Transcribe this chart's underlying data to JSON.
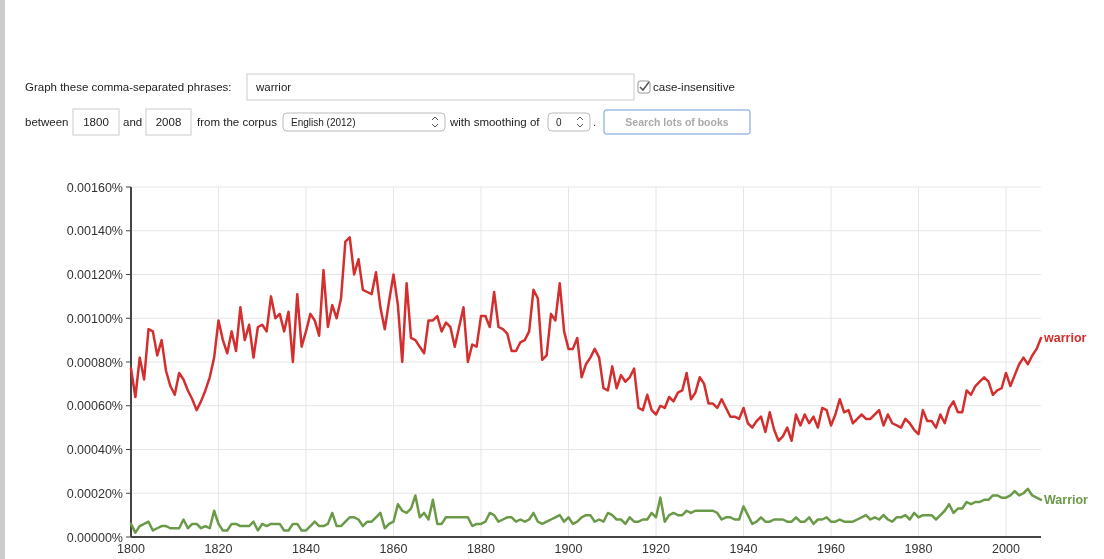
{
  "chart_data": {
    "type": "line",
    "annotations": [
      "Graph these comma-separated phrases:",
      "warrior",
      "case-insensitive",
      "between",
      "1800",
      "and",
      "2008",
      "from the corpus",
      "English (2012)",
      "with smoothing of",
      "0",
      ".",
      "Search lots of books"
    ],
    "x": [
      1800,
      1801,
      1802,
      1803,
      1804,
      1805,
      1806,
      1807,
      1808,
      1809,
      1810,
      1811,
      1812,
      1813,
      1814,
      1815,
      1816,
      1817,
      1818,
      1819,
      1820,
      1821,
      1822,
      1823,
      1824,
      1825,
      1826,
      1827,
      1828,
      1829,
      1830,
      1831,
      1832,
      1833,
      1834,
      1835,
      1836,
      1837,
      1838,
      1839,
      1840,
      1841,
      1842,
      1843,
      1844,
      1845,
      1846,
      1847,
      1848,
      1849,
      1850,
      1851,
      1852,
      1853,
      1854,
      1855,
      1856,
      1857,
      1858,
      1859,
      1860,
      1861,
      1862,
      1863,
      1864,
      1865,
      1866,
      1867,
      1868,
      1869,
      1870,
      1871,
      1872,
      1873,
      1874,
      1875,
      1876,
      1877,
      1878,
      1879,
      1880,
      1881,
      1882,
      1883,
      1884,
      1885,
      1886,
      1887,
      1888,
      1889,
      1890,
      1891,
      1892,
      1893,
      1894,
      1895,
      1896,
      1897,
      1898,
      1899,
      1900,
      1901,
      1902,
      1903,
      1904,
      1905,
      1906,
      1907,
      1908,
      1909,
      1910,
      1911,
      1912,
      1913,
      1914,
      1915,
      1916,
      1917,
      1918,
      1919,
      1920,
      1921,
      1922,
      1923,
      1924,
      1925,
      1926,
      1927,
      1928,
      1929,
      1930,
      1931,
      1932,
      1933,
      1934,
      1935,
      1936,
      1937,
      1938,
      1939,
      1940,
      1941,
      1942,
      1943,
      1944,
      1945,
      1946,
      1947,
      1948,
      1949,
      1950,
      1951,
      1952,
      1953,
      1954,
      1955,
      1956,
      1957,
      1958,
      1959,
      1960,
      1961,
      1962,
      1963,
      1964,
      1965,
      1966,
      1967,
      1968,
      1969,
      1970,
      1971,
      1972,
      1973,
      1974,
      1975,
      1976,
      1977,
      1978,
      1979,
      1980,
      1981,
      1982,
      1983,
      1984,
      1985,
      1986,
      1987,
      1988,
      1989,
      1990,
      1991,
      1992,
      1993,
      1994,
      1995,
      1996,
      1997,
      1998,
      1999,
      2000,
      2001,
      2002,
      2003,
      2004,
      2005,
      2006,
      2007,
      2008
    ],
    "series": [
      {
        "name": "warrior",
        "color": "#d32f2f",
        "values": [
          0.00077,
          0.00064,
          0.00082,
          0.00072,
          0.00095,
          0.00094,
          0.00083,
          0.0009,
          0.00076,
          0.00069,
          0.00065,
          0.00075,
          0.00072,
          0.00067,
          0.00063,
          0.00058,
          0.00062,
          0.00067,
          0.00073,
          0.00082,
          0.00099,
          0.0009,
          0.00084,
          0.00094,
          0.00085,
          0.00105,
          0.0009,
          0.00097,
          0.00082,
          0.00096,
          0.00097,
          0.00094,
          0.0011,
          0.001,
          0.00102,
          0.00094,
          0.00103,
          0.0008,
          0.00111,
          0.00087,
          0.00094,
          0.00102,
          0.00099,
          0.00092,
          0.00122,
          0.00096,
          0.00106,
          0.001,
          0.00109,
          0.00135,
          0.00137,
          0.0012,
          0.00127,
          0.00113,
          0.00112,
          0.00111,
          0.00121,
          0.00105,
          0.00095,
          0.00108,
          0.0012,
          0.00106,
          0.0008,
          0.00116,
          0.00091,
          0.0009,
          0.00087,
          0.00084,
          0.00099,
          0.00099,
          0.00101,
          0.00094,
          0.00098,
          0.00096,
          0.00087,
          0.00096,
          0.00105,
          0.0008,
          0.00088,
          0.00087,
          0.00101,
          0.00101,
          0.00096,
          0.00112,
          0.00096,
          0.00095,
          0.00093,
          0.00085,
          0.00085,
          0.00089,
          0.0009,
          0.00094,
          0.00113,
          0.00109,
          0.00081,
          0.00083,
          0.00102,
          0.00099,
          0.00116,
          0.00094,
          0.00086,
          0.00086,
          0.00091,
          0.00073,
          0.00079,
          0.00082,
          0.00086,
          0.00082,
          0.00068,
          0.00067,
          0.00078,
          0.00068,
          0.00074,
          0.00071,
          0.00073,
          0.00077,
          0.00059,
          0.00058,
          0.00065,
          0.00058,
          0.00056,
          0.0006,
          0.00059,
          0.00064,
          0.00062,
          0.00066,
          0.00067,
          0.00075,
          0.00063,
          0.00066,
          0.00073,
          0.0007,
          0.00061,
          0.00061,
          0.00059,
          0.00063,
          0.00059,
          0.00055,
          0.00055,
          0.00054,
          0.00059,
          0.00052,
          0.0005,
          0.00053,
          0.00055,
          0.00048,
          0.00057,
          0.00049,
          0.00044,
          0.00046,
          0.0005,
          0.00044,
          0.00056,
          0.00051,
          0.00056,
          0.00052,
          0.00055,
          0.0005,
          0.00059,
          0.00058,
          0.00051,
          0.00056,
          0.00063,
          0.00057,
          0.00058,
          0.00052,
          0.00054,
          0.00056,
          0.00054,
          0.00054,
          0.00056,
          0.00058,
          0.00051,
          0.00056,
          0.00052,
          0.00051,
          0.0005,
          0.00054,
          0.00052,
          0.00049,
          0.00047,
          0.00058,
          0.00053,
          0.00053,
          0.0005,
          0.00056,
          0.00052,
          0.00059,
          0.00062,
          0.00057,
          0.00057,
          0.00067,
          0.00065,
          0.00069,
          0.00071,
          0.00073,
          0.00071,
          0.00065,
          0.00067,
          0.00068,
          0.00075,
          0.00069,
          0.00074,
          0.00079,
          0.00082,
          0.00079,
          0.00083,
          0.00086,
          0.00091
        ]
      },
      {
        "name": "Warrior",
        "color": "#6a9a48",
        "values": [
          6e-05,
          2e-05,
          5e-05,
          6e-05,
          7e-05,
          3e-05,
          4e-05,
          5e-05,
          5e-05,
          4e-05,
          4e-05,
          4e-05,
          8e-05,
          4e-05,
          6e-05,
          6e-05,
          4e-05,
          5e-05,
          4e-05,
          0.00012,
          6e-05,
          3e-05,
          3e-05,
          6e-05,
          6e-05,
          5e-05,
          5e-05,
          5e-05,
          7e-05,
          3e-05,
          6e-05,
          5e-05,
          6e-05,
          6e-05,
          6e-05,
          3e-05,
          3e-05,
          6e-05,
          6e-05,
          3e-05,
          3e-05,
          5e-05,
          7e-05,
          5e-05,
          5e-05,
          6e-05,
          0.00011,
          5e-05,
          5e-05,
          7e-05,
          9e-05,
          9e-05,
          8e-05,
          5e-05,
          7e-05,
          7e-05,
          9e-05,
          0.00011,
          4e-05,
          6e-05,
          7e-05,
          0.00015,
          0.00012,
          0.00011,
          0.00013,
          0.00019,
          9e-05,
          0.00011,
          8e-05,
          0.00017,
          6e-05,
          6e-05,
          9e-05,
          9e-05,
          9e-05,
          9e-05,
          9e-05,
          9e-05,
          5e-05,
          6e-05,
          6e-05,
          7e-05,
          0.00011,
          0.0001,
          7e-05,
          8e-05,
          9e-05,
          9e-05,
          7e-05,
          8e-05,
          7e-05,
          8e-05,
          0.00011,
          7e-05,
          6e-05,
          7e-05,
          8e-05,
          9e-05,
          0.0001,
          7e-05,
          9e-05,
          6e-05,
          7e-05,
          9e-05,
          0.0001,
          0.0001,
          7e-05,
          8e-05,
          7e-05,
          0.00011,
          0.0001,
          8e-05,
          8e-05,
          6e-05,
          9e-05,
          7e-05,
          7e-05,
          8e-05,
          8e-05,
          0.00011,
          9e-05,
          0.00018,
          7e-05,
          0.0001,
          0.00011,
          0.0001,
          0.0001,
          0.00012,
          0.00011,
          0.00012,
          0.00012,
          0.00012,
          0.00012,
          0.00012,
          0.00011,
          8e-05,
          9e-05,
          9e-05,
          8e-05,
          8e-05,
          0.00014,
          0.0001,
          6e-05,
          7e-05,
          9e-05,
          7e-05,
          7e-05,
          8e-05,
          8e-05,
          8e-05,
          7e-05,
          7e-05,
          9e-05,
          7e-05,
          7e-05,
          9e-05,
          6e-05,
          8e-05,
          8e-05,
          9e-05,
          7e-05,
          7e-05,
          8e-05,
          7e-05,
          7e-05,
          7e-05,
          8e-05,
          9e-05,
          0.0001,
          8e-05,
          9e-05,
          8e-05,
          0.0001,
          8e-05,
          7e-05,
          9e-05,
          9e-05,
          0.0001,
          8e-05,
          0.00011,
          9e-05,
          0.0001,
          0.0001,
          0.0001,
          8e-05,
          0.0001,
          0.00012,
          0.00015,
          0.00011,
          0.00013,
          0.00013,
          0.00016,
          0.00015,
          0.00016,
          0.00016,
          0.00017,
          0.00017,
          0.00019,
          0.00019,
          0.00018,
          0.00018,
          0.00019,
          0.00021,
          0.00019,
          0.0002,
          0.00022,
          0.00019,
          0.00018,
          0.00017
        ]
      }
    ],
    "xlim": [
      1800,
      2008
    ],
    "xticks": [
      1800,
      1820,
      1840,
      1860,
      1880,
      1900,
      1920,
      1940,
      1960,
      1980,
      2000
    ],
    "ylim": [
      0,
      0.0016
    ],
    "yticks": [
      {
        "value": 0,
        "label": "0.00000%"
      },
      {
        "value": 0.0002,
        "label": "0.00020%"
      },
      {
        "value": 0.0004,
        "label": "0.00040%"
      },
      {
        "value": 0.0006,
        "label": "0.00060%"
      },
      {
        "value": 0.0008,
        "label": "0.00080%"
      },
      {
        "value": 0.001,
        "label": "0.00100%"
      },
      {
        "value": 0.0012,
        "label": "0.00120%"
      },
      {
        "value": 0.0014,
        "label": "0.00140%"
      },
      {
        "value": 0.0016,
        "label": "0.00160%"
      }
    ],
    "grid": true,
    "line_style": "solid",
    "marker": "none"
  }
}
